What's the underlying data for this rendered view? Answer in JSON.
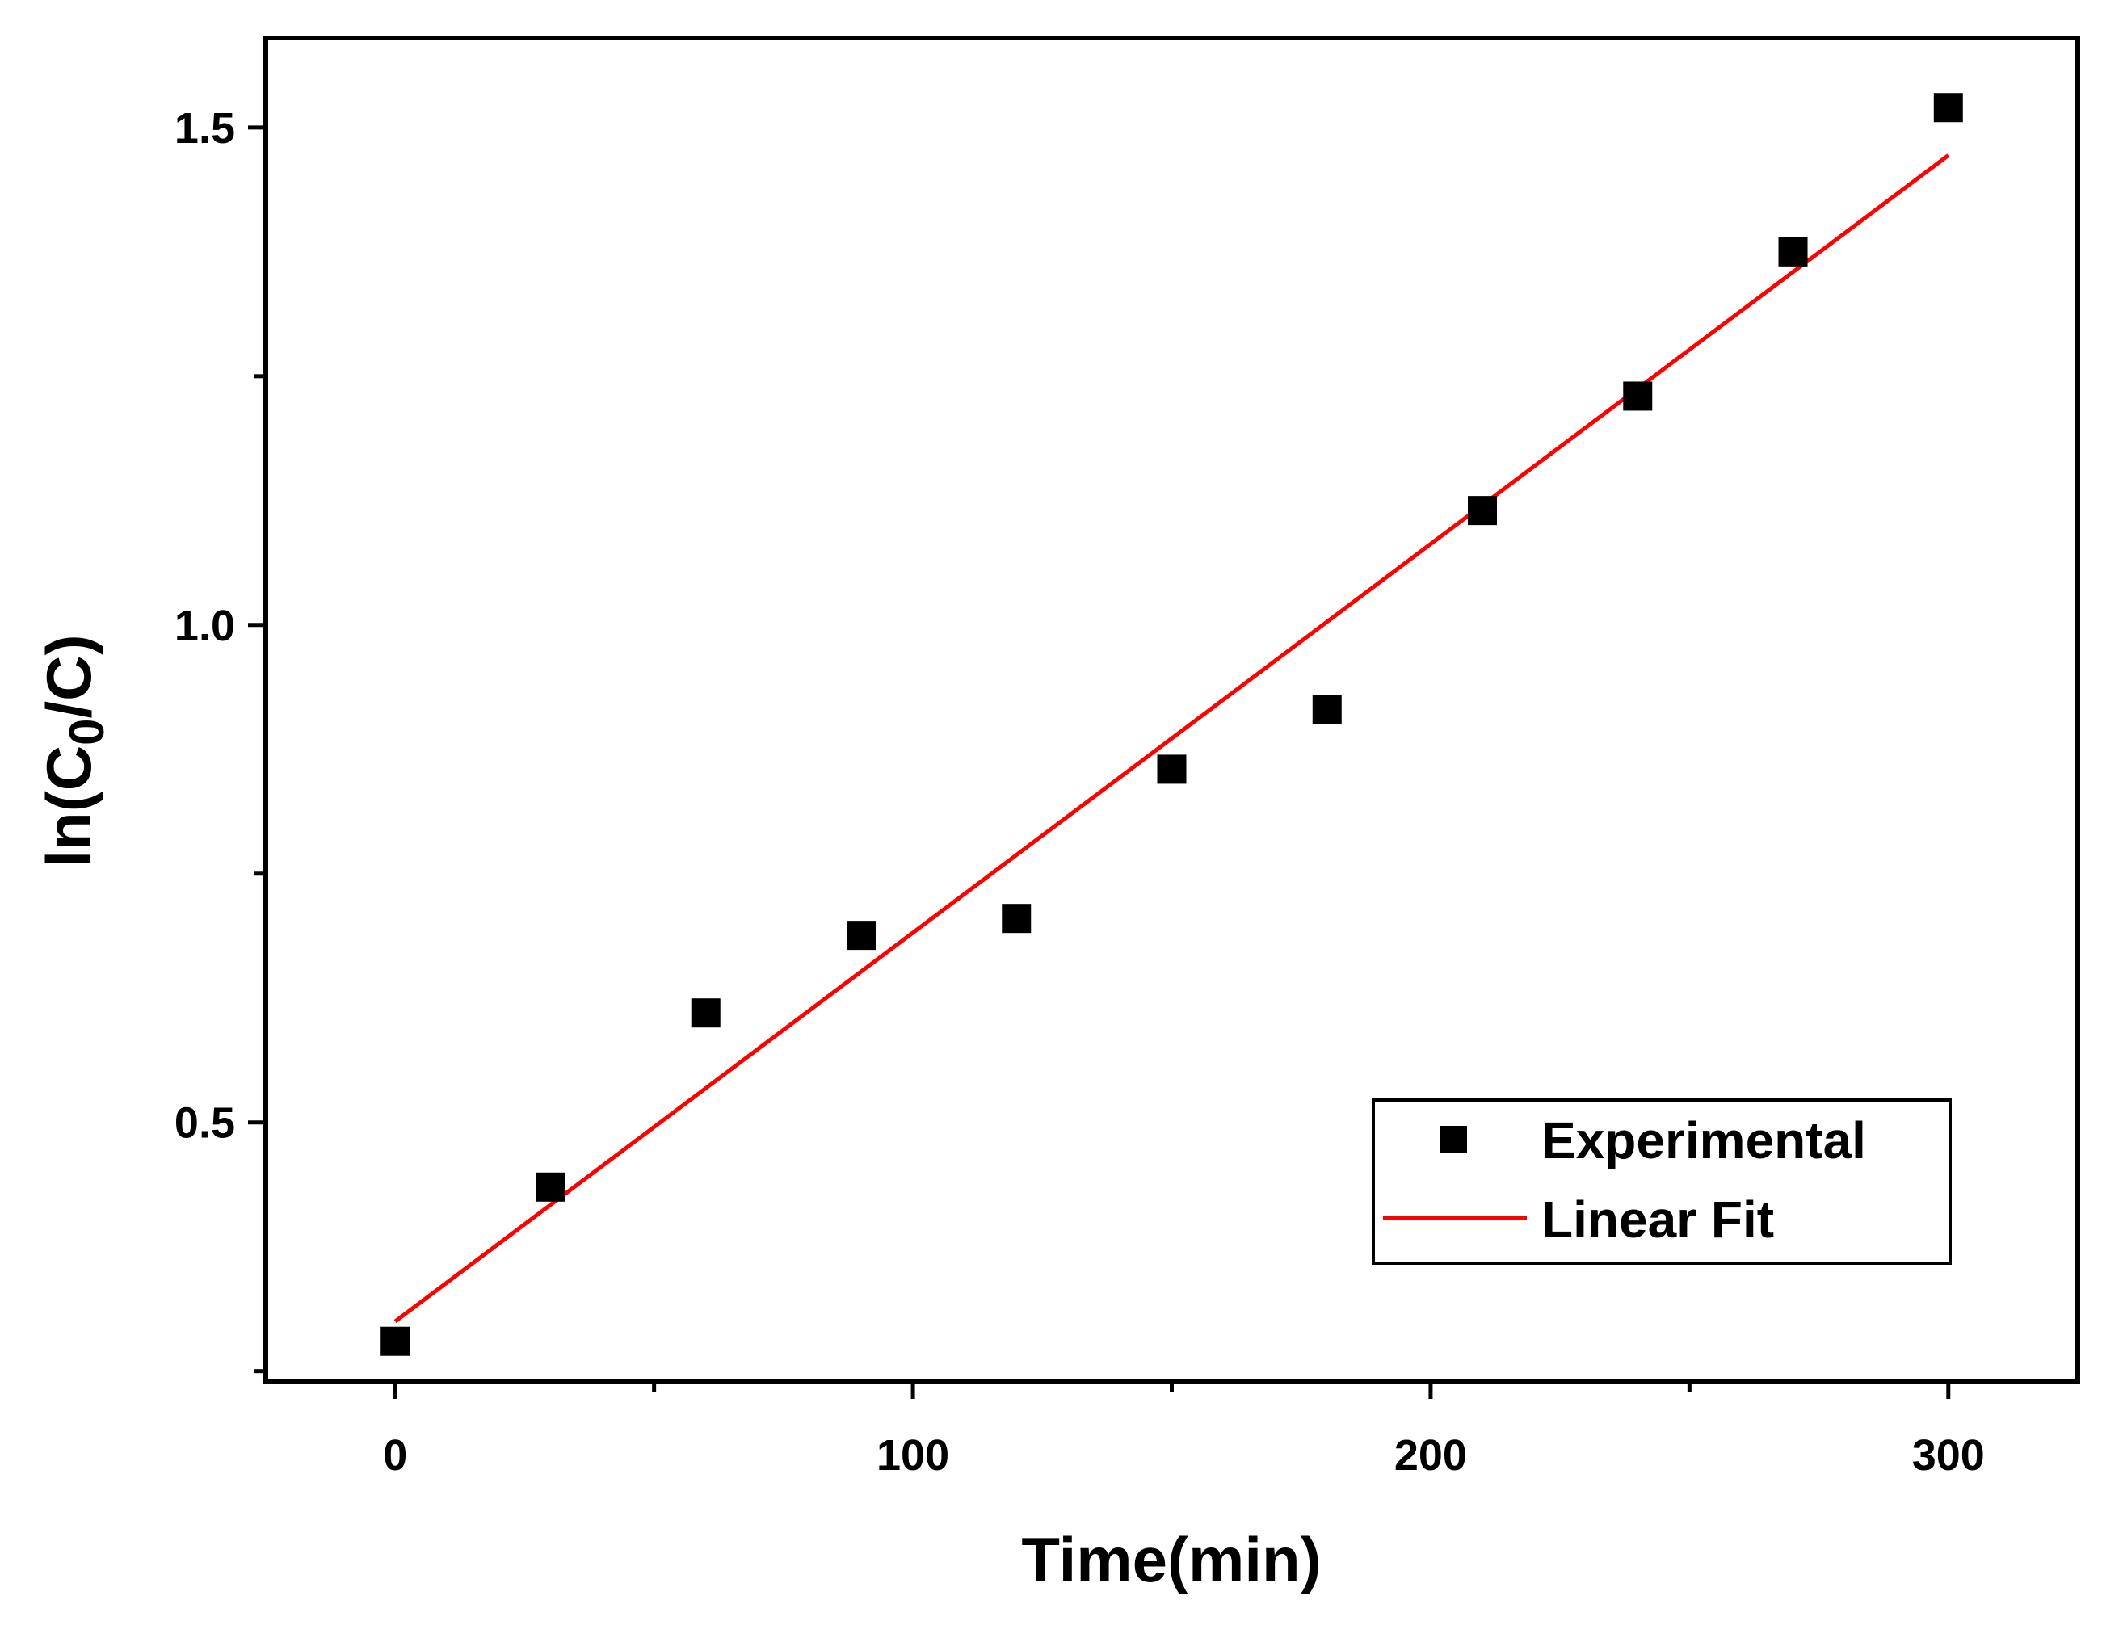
{
  "chart_data": {
    "type": "scatter",
    "title": "",
    "xlabel": "Time(min)",
    "ylabel_prefix": "ln(C",
    "ylabel_sub": "0",
    "ylabel_suffix": "/C)",
    "xlim": [
      -25,
      325
    ],
    "ylim": [
      0.24,
      1.59
    ],
    "xticks": [
      0,
      100,
      200,
      300
    ],
    "xtick_labels": [
      "0",
      "100",
      "200",
      "300"
    ],
    "x_minor_ticks": [
      50,
      150,
      250
    ],
    "yticks": [
      0.5,
      1.0,
      1.5
    ],
    "ytick_labels": [
      "0.5",
      "1.0",
      "1.5"
    ],
    "y_minor_ticks": [
      0.25,
      0.75,
      1.25
    ],
    "grid": false,
    "legend_position": "bottom-right",
    "series": [
      {
        "name": "Experimental",
        "kind": "scatter",
        "marker": "square",
        "color": "#000000",
        "x": [
          0,
          30,
          60,
          90,
          120,
          150,
          180,
          210,
          240,
          270,
          300
        ],
        "y": [
          0.28,
          0.435,
          0.61,
          0.688,
          0.705,
          0.855,
          0.915,
          1.115,
          1.23,
          1.375,
          1.52
        ]
      },
      {
        "name": "Linear Fit",
        "kind": "line",
        "color": "#ff0000",
        "x": [
          0,
          300
        ],
        "y": [
          0.3,
          1.472
        ]
      }
    ]
  }
}
